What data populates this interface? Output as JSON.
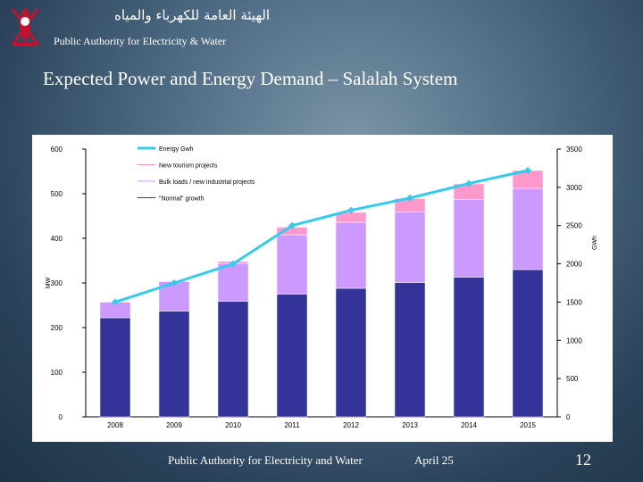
{
  "header": {
    "arabic_title": "الهيئة العامة للكهرباء والمياه",
    "org_name": "Public Authority for Electricity & Water"
  },
  "slide_title": "Expected Power and Energy Demand – Salalah System",
  "footer": {
    "org": "Public Authority for Electricity and Water",
    "date": "April 25",
    "page": "12"
  },
  "colors": {
    "normal_growth": "#33339a",
    "bulk_loads": "#cc99ff",
    "tourism": "#ff99cc",
    "energy_line": "#33ccee"
  },
  "chart_data": {
    "type": "bar",
    "stacked": true,
    "categories": [
      "2008",
      "2009",
      "2010",
      "2011",
      "2012",
      "2013",
      "2014",
      "2015"
    ],
    "ylabel": "MW",
    "y2label": "GWh",
    "ylim": [
      0,
      600
    ],
    "y2lim": [
      0,
      3500
    ],
    "yticks": [
      0,
      100,
      200,
      300,
      400,
      500,
      600
    ],
    "y2ticks": [
      0,
      500,
      1000,
      1500,
      2000,
      2500,
      3000,
      3500
    ],
    "grid": false,
    "legend_position": "top",
    "series": [
      {
        "name": "\"Normal\" growth",
        "type": "bar",
        "values": [
          222,
          237,
          259,
          275,
          288,
          301,
          313,
          330
        ]
      },
      {
        "name": "Bulk loads / new industrial projects",
        "type": "bar",
        "values": [
          35,
          66,
          84,
          133,
          148,
          158,
          174,
          182
        ]
      },
      {
        "name": "New tourism projects",
        "type": "bar",
        "values": [
          0,
          0,
          5,
          17,
          22,
          30,
          35,
          40
        ]
      },
      {
        "name": "Energy Gwh",
        "type": "line",
        "axis": "y2",
        "values": [
          1500,
          1750,
          2000,
          2500,
          2700,
          2860,
          3050,
          3220
        ]
      }
    ]
  }
}
